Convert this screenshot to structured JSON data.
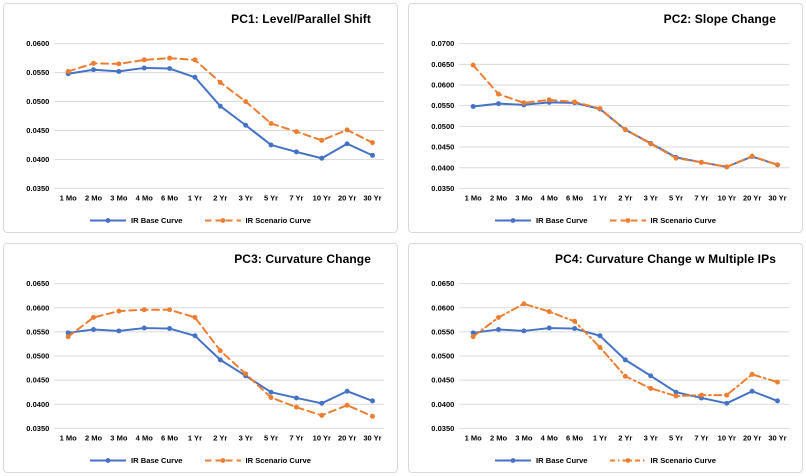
{
  "colors": {
    "base_series": "#4472C4",
    "scenario_series": "#ED7D31",
    "gridline": "#d9d9d9",
    "label_text": "#000000",
    "chart_border": "#d9d9d9",
    "background": "#ffffff"
  },
  "chart_data": [
    {
      "type": "line",
      "title": "PC1: Level/Parallel Shift",
      "categories": [
        "1 Mo",
        "2 Mo",
        "3 Mo",
        "4 Mo",
        "6 Mo",
        "1 Yr",
        "2 Yr",
        "3 Yr",
        "5 Yr",
        "7 Yr",
        "10 Yr",
        "20 Yr",
        "30 Yr"
      ],
      "series": [
        {
          "name": "IR Base Curve",
          "color": "#4472C4",
          "style": "solid",
          "values": [
            0.0548,
            0.0555,
            0.0552,
            0.0558,
            0.0557,
            0.0542,
            0.0492,
            0.0459,
            0.0425,
            0.0413,
            0.0402,
            0.0427,
            0.0407
          ]
        },
        {
          "name": "IR Scenario Curve",
          "color": "#ED7D31",
          "style": "dashed",
          "values": [
            0.0552,
            0.0566,
            0.0565,
            0.0572,
            0.0575,
            0.0572,
            0.0533,
            0.05,
            0.0462,
            0.0448,
            0.0433,
            0.0451,
            0.0429
          ]
        }
      ],
      "xlabel": "",
      "ylabel": "",
      "ylim": [
        0.035,
        0.06
      ],
      "ytick_step": 0.005,
      "ytick_decimals": 4,
      "grid": true,
      "legend_position": "bottom"
    },
    {
      "type": "line",
      "title": "PC2: Slope Change",
      "categories": [
        "1 Mo",
        "2 Mo",
        "3 Mo",
        "4 Mo",
        "6 Mo",
        "1 Yr",
        "2 Yr",
        "3 Yr",
        "5 Yr",
        "7 Yr",
        "10 Yr",
        "20 Yr",
        "30 Yr"
      ],
      "series": [
        {
          "name": "IR Base Curve",
          "color": "#4472C4",
          "style": "solid",
          "values": [
            0.0548,
            0.0555,
            0.0552,
            0.0558,
            0.0557,
            0.0542,
            0.0492,
            0.0459,
            0.0425,
            0.0413,
            0.0402,
            0.0427,
            0.0407
          ]
        },
        {
          "name": "IR Scenario Curve",
          "color": "#ED7D31",
          "style": "dashed",
          "values": [
            0.0648,
            0.0578,
            0.0557,
            0.0564,
            0.0559,
            0.0543,
            0.0492,
            0.0458,
            0.0423,
            0.0413,
            0.0402,
            0.0428,
            0.0407
          ]
        }
      ],
      "xlabel": "",
      "ylabel": "",
      "ylim": [
        0.035,
        0.07
      ],
      "ytick_step": 0.005,
      "ytick_decimals": 4,
      "grid": true,
      "legend_position": "bottom"
    },
    {
      "type": "line",
      "title": "PC3: Curvature Change",
      "categories": [
        "1 Mo",
        "2 Mo",
        "3 Mo",
        "4 Mo",
        "6 Mo",
        "1 Yr",
        "2 Yr",
        "3 Yr",
        "5 Yr",
        "7 Yr",
        "10 Yr",
        "20 Yr",
        "30 Yr"
      ],
      "series": [
        {
          "name": "IR Base Curve",
          "color": "#4472C4",
          "style": "solid",
          "values": [
            0.0548,
            0.0555,
            0.0552,
            0.0558,
            0.0557,
            0.0542,
            0.0492,
            0.0459,
            0.0425,
            0.0413,
            0.0402,
            0.0427,
            0.0407
          ]
        },
        {
          "name": "IR Scenario Curve",
          "color": "#ED7D31",
          "style": "dashed",
          "values": [
            0.054,
            0.058,
            0.0593,
            0.0596,
            0.0596,
            0.058,
            0.0511,
            0.0463,
            0.0414,
            0.0394,
            0.0377,
            0.0398,
            0.0375
          ]
        }
      ],
      "xlabel": "",
      "ylabel": "",
      "ylim": [
        0.035,
        0.065
      ],
      "ytick_step": 0.005,
      "ytick_decimals": 4,
      "grid": true,
      "legend_position": "bottom"
    },
    {
      "type": "line",
      "title": "PC4: Curvature Change w Multiple IPs",
      "categories": [
        "1 Mo",
        "2 Mo",
        "3 Mo",
        "4 Mo",
        "6 Mo",
        "1 Yr",
        "2 Yr",
        "3 Yr",
        "5 Yr",
        "7 Yr",
        "10 Yr",
        "20 Yr",
        "30 Yr"
      ],
      "series": [
        {
          "name": "IR Base Curve",
          "color": "#4472C4",
          "style": "solid",
          "values": [
            0.0548,
            0.0555,
            0.0552,
            0.0558,
            0.0557,
            0.0542,
            0.0492,
            0.0459,
            0.0425,
            0.0413,
            0.0402,
            0.0427,
            0.0407
          ]
        },
        {
          "name": "IR Scenario Curve",
          "color": "#ED7D31",
          "style": "dash-dot",
          "values": [
            0.054,
            0.058,
            0.0608,
            0.0592,
            0.0572,
            0.0518,
            0.0458,
            0.0433,
            0.0417,
            0.0419,
            0.0419,
            0.0462,
            0.0446
          ]
        }
      ],
      "xlabel": "",
      "ylabel": "",
      "ylim": [
        0.035,
        0.065
      ],
      "ytick_step": 0.005,
      "ytick_decimals": 4,
      "grid": true,
      "legend_position": "bottom"
    }
  ]
}
